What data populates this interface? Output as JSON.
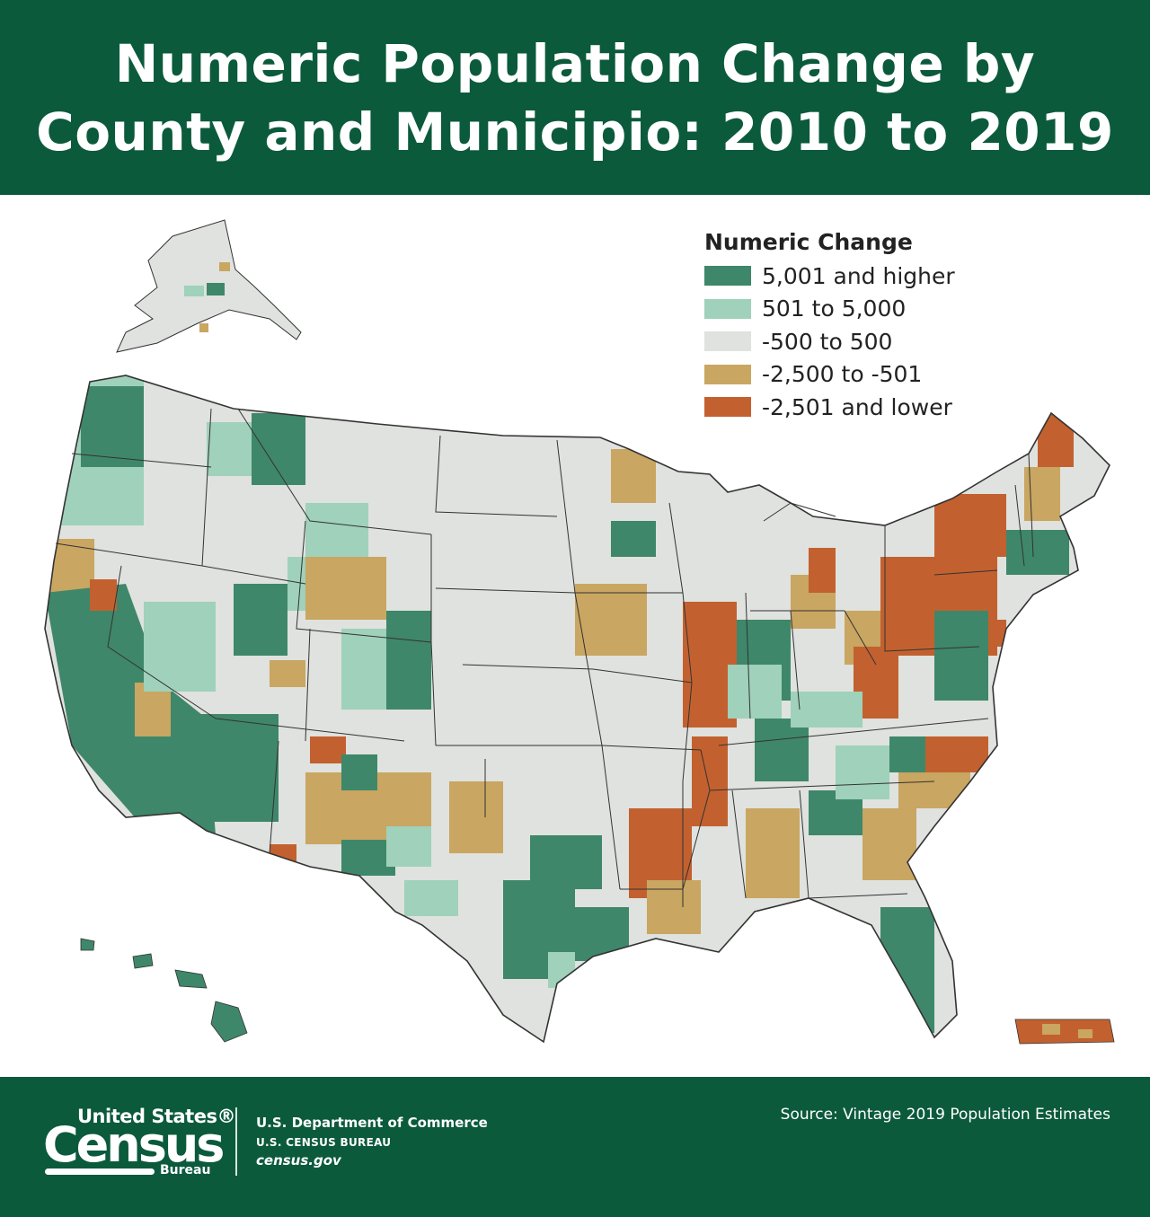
{
  "header": {
    "title_line1": "Numeric Population Change by",
    "title_line2": "County and Municipio: 2010 to 2019"
  },
  "legend": {
    "title": "Numeric Change",
    "items": [
      {
        "label": "5,001 and higher",
        "color": "#3f876a"
      },
      {
        "label": "501 to 5,000",
        "color": "#9fd1bb"
      },
      {
        "label": "-500 to 500",
        "color": "#dfe2de"
      },
      {
        "label": "-2,500 to -501",
        "color": "#c9a661"
      },
      {
        "label": "-2,501 and lower",
        "color": "#c2612f"
      }
    ]
  },
  "colors": {
    "brand_green": "#0b5a3c",
    "boundary": "#333333"
  },
  "footer": {
    "logo_line1": "United States®",
    "logo_line2": "Census",
    "logo_line3": "Bureau",
    "department": "U.S. Department of Commerce",
    "bureau": "U.S. CENSUS BUREAU",
    "website": "census.gov",
    "source": "Source: Vintage 2019 Population Estimates"
  }
}
